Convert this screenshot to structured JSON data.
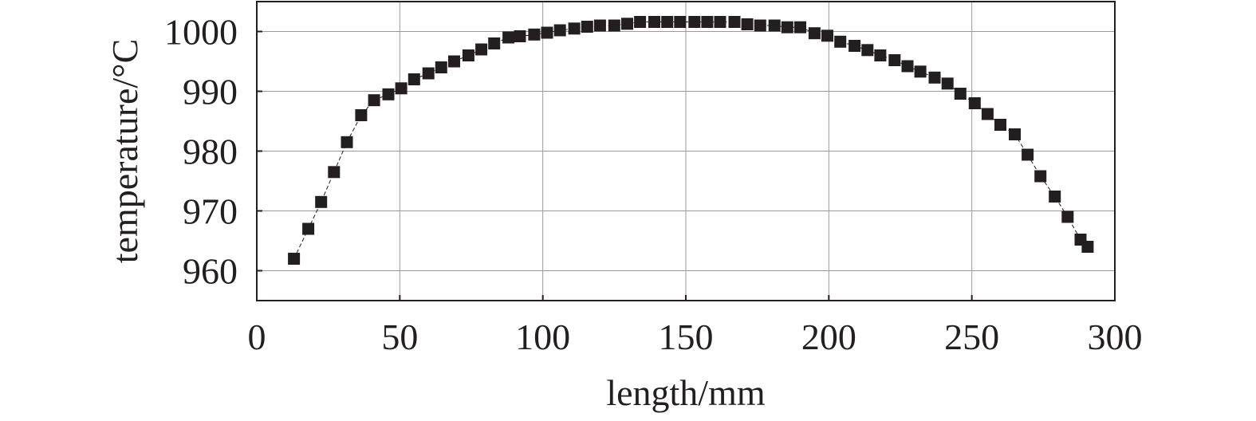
{
  "chart_data": {
    "type": "scatter",
    "title": "",
    "xlabel": "length/mm",
    "ylabel": "temperature/°C",
    "xlim": [
      0,
      300
    ],
    "ylim": [
      955,
      1005
    ],
    "xticks": [
      0,
      50,
      100,
      150,
      200,
      250,
      300
    ],
    "yticks": [
      960,
      970,
      980,
      990,
      1000
    ],
    "grid": true,
    "legend": "none",
    "marker": "square",
    "color": "#231f20",
    "series": [
      {
        "x": [
          13,
          18,
          22.5,
          27,
          31.5,
          36.5,
          41,
          46,
          50.5,
          55,
          60,
          64.5,
          69,
          74,
          78.5,
          83,
          88,
          92,
          97,
          101.5,
          106,
          111,
          115.5,
          120,
          125,
          129.5,
          134,
          139,
          143.5,
          148,
          153,
          157.5,
          162,
          167,
          171.5,
          176,
          181,
          185.5,
          190,
          195,
          199.5,
          204,
          209,
          213.5,
          218,
          223,
          227.5,
          232,
          237,
          241.5,
          246,
          251,
          255.5,
          260,
          265,
          269.5,
          274,
          279,
          283.5,
          288,
          290.5
        ],
        "y": [
          962,
          967,
          971.5,
          976.5,
          981.5,
          986,
          988.5,
          989.5,
          990.5,
          992,
          993,
          994,
          995,
          996,
          997,
          998,
          999,
          999.2,
          999.5,
          999.8,
          1000.2,
          1000.5,
          1000.8,
          1001,
          1001,
          1001.3,
          1001.6,
          1001.6,
          1001.6,
          1001.6,
          1001.6,
          1001.6,
          1001.6,
          1001.6,
          1001.2,
          1001,
          1001,
          1000.7,
          1000.7,
          999.7,
          999.3,
          998.3,
          997.6,
          996.9,
          996,
          995.2,
          994.2,
          993.3,
          992.3,
          991.3,
          989.6,
          988,
          986.2,
          984.4,
          982.8,
          979.4,
          975.8,
          972.4,
          969,
          965.2,
          964
        ]
      }
    ]
  }
}
